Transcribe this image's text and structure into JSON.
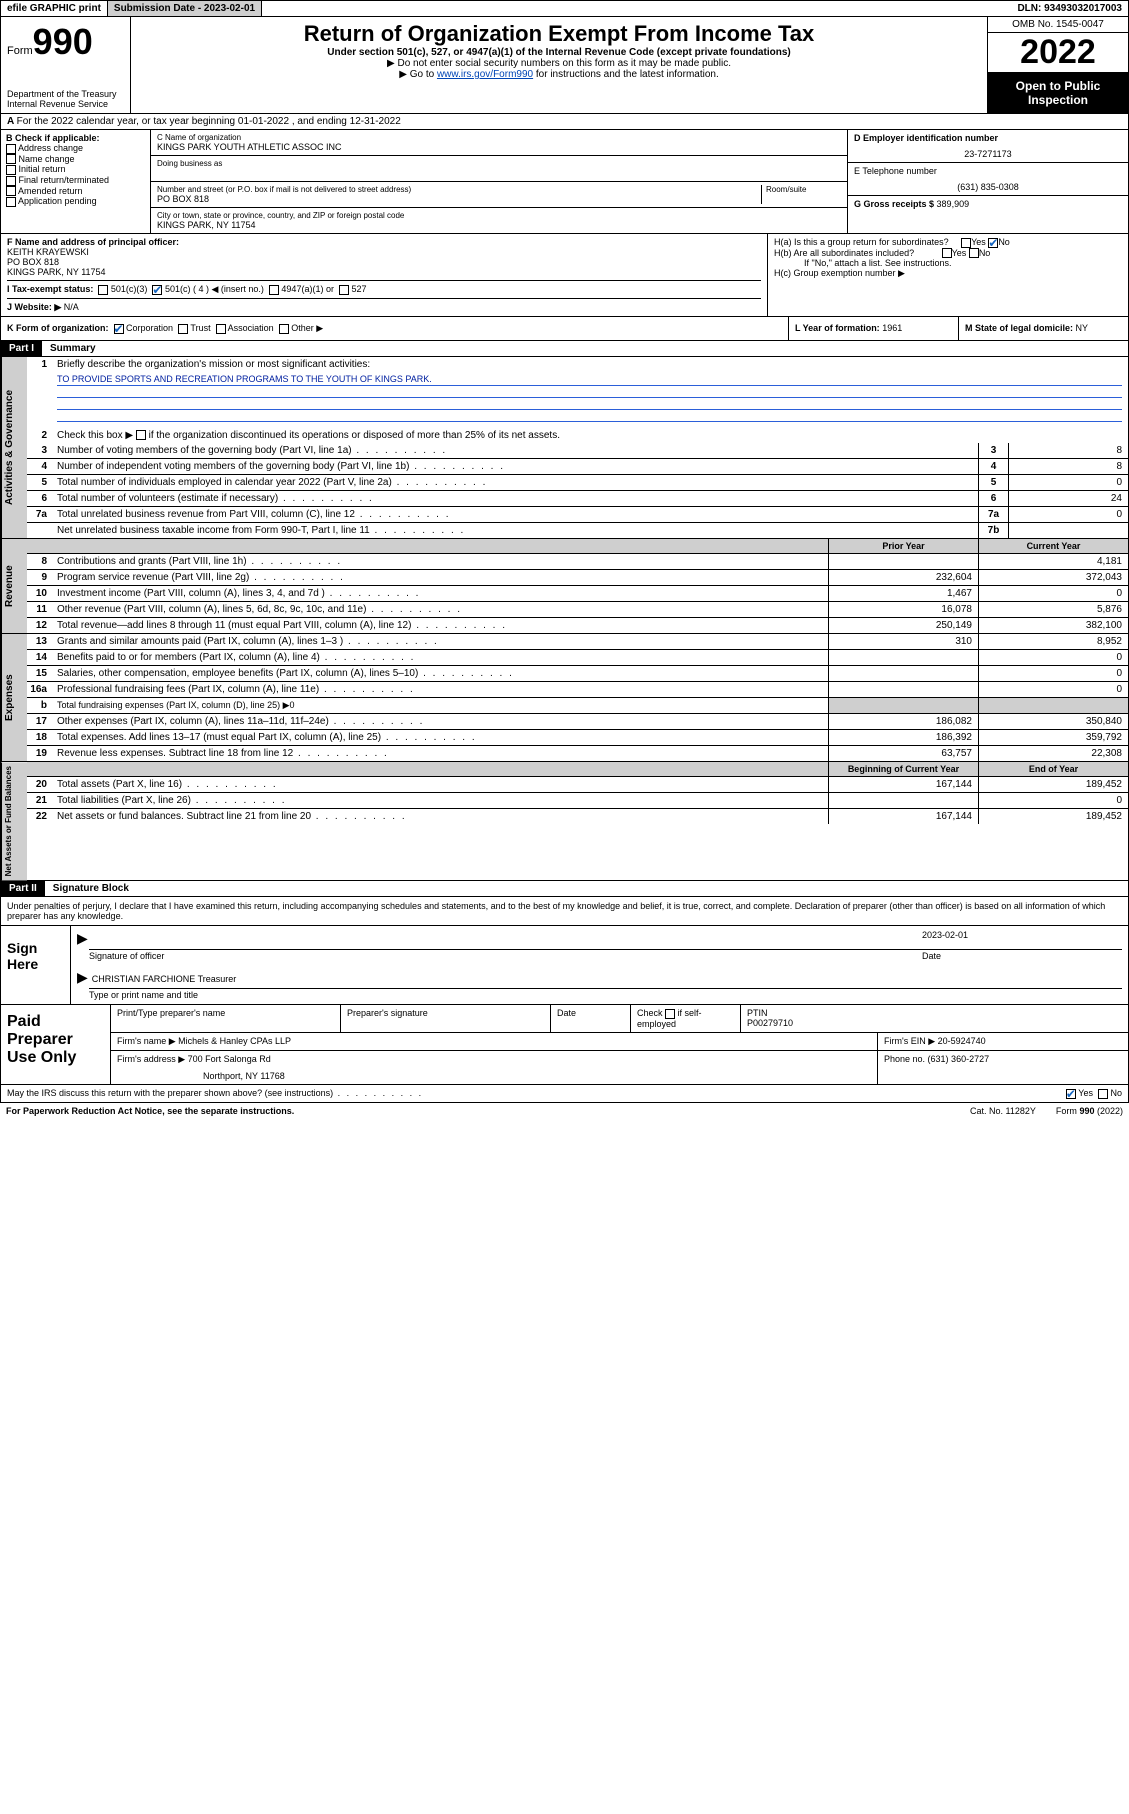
{
  "topbar": {
    "efile": "efile GRAPHIC print",
    "submission_label": "Submission Date - ",
    "submission_date": "2023-02-01",
    "dln_label": "DLN: ",
    "dln": "93493032017003"
  },
  "header": {
    "form_word": "Form",
    "form_num": "990",
    "dept": "Department of the Treasury\nInternal Revenue Service",
    "title": "Return of Organization Exempt From Income Tax",
    "subtitle": "Under section 501(c), 527, or 4947(a)(1) of the Internal Revenue Code (except private foundations)",
    "note1": "▶ Do not enter social security numbers on this form as it may be made public.",
    "note2_pre": "▶ Go to ",
    "note2_link": "www.irs.gov/Form990",
    "note2_post": " for instructions and the latest information.",
    "omb": "OMB No. 1545-0047",
    "year": "2022",
    "inspect": "Open to Public Inspection"
  },
  "row_a": "For the 2022 calendar year, or tax year beginning 01-01-2022   , and ending 12-31-2022",
  "section_b": {
    "label": "B Check if applicable:",
    "items": [
      "Address change",
      "Name change",
      "Initial return",
      "Final return/terminated",
      "Amended return",
      "Application pending"
    ]
  },
  "section_c": {
    "name_label": "C Name of organization",
    "name": "KINGS PARK YOUTH ATHLETIC ASSOC INC",
    "dba_label": "Doing business as",
    "dba": "",
    "street_label": "Number and street (or P.O. box if mail is not delivered to street address)",
    "room_label": "Room/suite",
    "street": "PO BOX 818",
    "city_label": "City or town, state or province, country, and ZIP or foreign postal code",
    "city": "KINGS PARK, NY  11754"
  },
  "section_de": {
    "d_label": "D Employer identification number",
    "d_val": "23-7271173",
    "e_label": "E Telephone number",
    "e_val": "(631) 835-0308",
    "g_label": "G Gross receipts $ ",
    "g_val": "389,909"
  },
  "section_f": {
    "label": "F  Name and address of principal officer:",
    "name": "KEITH KRAYEWSKI",
    "addr1": "PO BOX 818",
    "addr2": "KINGS PARK, NY  11754"
  },
  "section_h": {
    "ha": "H(a)  Is this a group return for subordinates?",
    "hb": "H(b)  Are all subordinates included?",
    "hb_note": "If \"No,\" attach a list. See instructions.",
    "hc": "H(c)  Group exemption number ▶",
    "yes": "Yes",
    "no": "No"
  },
  "row_i": {
    "label": "I    Tax-exempt status:",
    "opts": [
      "501(c)(3)",
      "501(c) ( 4 ) ◀ (insert no.)",
      "4947(a)(1) or",
      "527"
    ]
  },
  "row_j": {
    "label": "J   Website: ▶",
    "val": "N/A"
  },
  "row_k": {
    "label": "K Form of organization:",
    "opts": [
      "Corporation",
      "Trust",
      "Association",
      "Other ▶"
    ],
    "l_label": "L Year of formation: ",
    "l_val": "1961",
    "m_label": "M State of legal domicile: ",
    "m_val": "NY"
  },
  "part1": {
    "hdr": "Part I",
    "title": "Summary",
    "line1_label": "Briefly describe the organization's mission or most significant activities:",
    "mission": "TO PROVIDE SPORTS AND RECREATION PROGRAMS TO THE YOUTH OF KINGS PARK.",
    "line2": "Check this box ▶      if the organization discontinued its operations or disposed of more than 25% of its net assets.",
    "lines_gov": [
      {
        "n": "3",
        "t": "Number of voting members of the governing body (Part VI, line 1a)",
        "box": "3",
        "v": "8"
      },
      {
        "n": "4",
        "t": "Number of independent voting members of the governing body (Part VI, line 1b)",
        "box": "4",
        "v": "8"
      },
      {
        "n": "5",
        "t": "Total number of individuals employed in calendar year 2022 (Part V, line 2a)",
        "box": "5",
        "v": "0"
      },
      {
        "n": "6",
        "t": "Total number of volunteers (estimate if necessary)",
        "box": "6",
        "v": "24"
      },
      {
        "n": "7a",
        "t": "Total unrelated business revenue from Part VIII, column (C), line 12",
        "box": "7a",
        "v": "0"
      },
      {
        "n": "",
        "t": "Net unrelated business taxable income from Form 990-T, Part I, line 11",
        "box": "7b",
        "v": ""
      }
    ],
    "col_hdr": {
      "prior": "Prior Year",
      "current": "Current Year"
    },
    "lines_rev": [
      {
        "n": "8",
        "t": "Contributions and grants (Part VIII, line 1h)",
        "p": "",
        "c": "4,181"
      },
      {
        "n": "9",
        "t": "Program service revenue (Part VIII, line 2g)",
        "p": "232,604",
        "c": "372,043"
      },
      {
        "n": "10",
        "t": "Investment income (Part VIII, column (A), lines 3, 4, and 7d )",
        "p": "1,467",
        "c": "0"
      },
      {
        "n": "11",
        "t": "Other revenue (Part VIII, column (A), lines 5, 6d, 8c, 9c, 10c, and 11e)",
        "p": "16,078",
        "c": "5,876"
      },
      {
        "n": "12",
        "t": "Total revenue—add lines 8 through 11 (must equal Part VIII, column (A), line 12)",
        "p": "250,149",
        "c": "382,100"
      }
    ],
    "lines_exp": [
      {
        "n": "13",
        "t": "Grants and similar amounts paid (Part IX, column (A), lines 1–3 )",
        "p": "310",
        "c": "8,952"
      },
      {
        "n": "14",
        "t": "Benefits paid to or for members (Part IX, column (A), line 4)",
        "p": "",
        "c": "0"
      },
      {
        "n": "15",
        "t": "Salaries, other compensation, employee benefits (Part IX, column (A), lines 5–10)",
        "p": "",
        "c": "0"
      },
      {
        "n": "16a",
        "t": "Professional fundraising fees (Part IX, column (A), line 11e)",
        "p": "",
        "c": "0"
      },
      {
        "n": "b",
        "t": "Total fundraising expenses (Part IX, column (D), line 25) ▶0",
        "p": "__NOCOL__",
        "c": ""
      },
      {
        "n": "17",
        "t": "Other expenses (Part IX, column (A), lines 11a–11d, 11f–24e)",
        "p": "186,082",
        "c": "350,840"
      },
      {
        "n": "18",
        "t": "Total expenses. Add lines 13–17 (must equal Part IX, column (A), line 25)",
        "p": "186,392",
        "c": "359,792"
      },
      {
        "n": "19",
        "t": "Revenue less expenses. Subtract line 18 from line 12",
        "p": "63,757",
        "c": "22,308"
      }
    ],
    "col_hdr2": {
      "begin": "Beginning of Current Year",
      "end": "End of Year"
    },
    "lines_net": [
      {
        "n": "20",
        "t": "Total assets (Part X, line 16)",
        "p": "167,144",
        "c": "189,452"
      },
      {
        "n": "21",
        "t": "Total liabilities (Part X, line 26)",
        "p": "",
        "c": "0"
      },
      {
        "n": "22",
        "t": "Net assets or fund balances. Subtract line 21 from line 20",
        "p": "167,144",
        "c": "189,452"
      }
    ],
    "vtabs": {
      "gov": "Activities & Governance",
      "rev": "Revenue",
      "exp": "Expenses",
      "net": "Net Assets or Fund Balances"
    }
  },
  "part2": {
    "hdr": "Part II",
    "title": "Signature Block",
    "intro": "Under penalties of perjury, I declare that I have examined this return, including accompanying schedules and statements, and to the best of my knowledge and belief, it is true, correct, and complete. Declaration of preparer (other than officer) is based on all information of which preparer has any knowledge.",
    "sign_here": "Sign Here",
    "sig_officer": "Signature of officer",
    "sig_date_label": "Date",
    "sig_date": "2023-02-01",
    "officer_name": "CHRISTIAN FARCHIONE  Treasurer",
    "name_title_label": "Type or print name and title",
    "paid": "Paid Preparer Use Only",
    "prep_hdrs": [
      "Print/Type preparer's name",
      "Preparer's signature",
      "Date"
    ],
    "check_if": "Check       if self-employed",
    "ptin_label": "PTIN",
    "ptin": "P00279710",
    "firm_name_label": "Firm's name     ▶ ",
    "firm_name": "Michels & Hanley CPAs LLP",
    "firm_ein_label": "Firm's EIN ▶ ",
    "firm_ein": "20-5924740",
    "firm_addr_label": "Firm's address ▶ ",
    "firm_addr": "700 Fort Salonga Rd",
    "firm_addr2": "Northport, NY  11768",
    "phone_label": "Phone no. ",
    "phone": "(631) 360-2727"
  },
  "footer": {
    "discuss": "May the IRS discuss this return with the preparer shown above? (see instructions)",
    "yes": "Yes",
    "no": "No",
    "paperwork": "For Paperwork Reduction Act Notice, see the separate instructions.",
    "cat": "Cat. No. 11282Y",
    "form": "Form 990 (2022)"
  }
}
